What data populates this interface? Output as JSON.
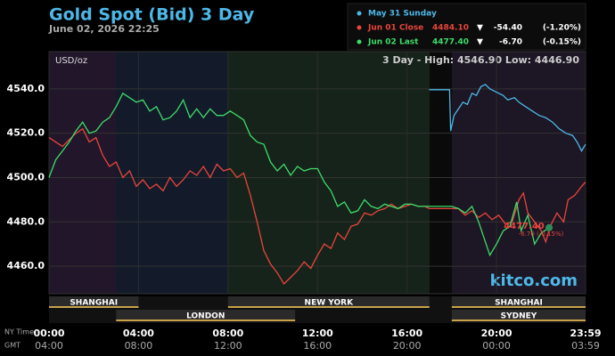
{
  "chart_data": {
    "type": "line",
    "title": "Gold Spot (Bid) 3 Day",
    "subtitle": "June 02, 2026 22:25",
    "unit_label": "USD/oz",
    "range_text": "3 Day - High: 4546.90  Low: 4446.90",
    "watermark": "kitco.com",
    "x_row_labels": [
      "NY Time",
      "GMT"
    ],
    "xlim": [
      0,
      23.98
    ],
    "ylim": [
      4447.6,
      4556.8
    ],
    "grid": true,
    "yticks": [
      {
        "value": 4460,
        "label": "4460.0"
      },
      {
        "value": 4480,
        "label": "4480.0"
      },
      {
        "value": 4500,
        "label": "4500.0"
      },
      {
        "value": 4520,
        "label": "4520.0"
      },
      {
        "value": 4540,
        "label": "4540.0"
      }
    ],
    "xticks": [
      {
        "value": 0,
        "label": "00:00"
      },
      {
        "value": 4,
        "label": "04:00"
      },
      {
        "value": 8,
        "label": "08:00"
      },
      {
        "value": 12,
        "label": "12:00"
      },
      {
        "value": 16,
        "label": "16:00"
      },
      {
        "value": 20,
        "label": "20:00"
      },
      {
        "value": 23.98,
        "label": "23:59"
      }
    ],
    "gmt_ticks": [
      {
        "value": 0,
        "label": "04:00"
      },
      {
        "value": 4,
        "label": "08:00"
      },
      {
        "value": 8,
        "label": "12:00"
      },
      {
        "value": 12,
        "label": "16:00"
      },
      {
        "value": 16,
        "label": "20:00"
      },
      {
        "value": 20,
        "label": "00:00"
      },
      {
        "value": 23.98,
        "label": "03:59"
      }
    ],
    "sessions": [
      {
        "name": "SHANGHAI",
        "start": 0,
        "end": 4,
        "row": 1
      },
      {
        "name": "LONDON",
        "start": 3,
        "end": 11,
        "row": 2
      },
      {
        "name": "NEW YORK",
        "start": 8,
        "end": 17,
        "row": 1
      },
      {
        "name": "SHANGHAI",
        "start": 18,
        "end": 23.98,
        "row": 1
      },
      {
        "name": "SYDNEY",
        "start": 18,
        "end": 23.98,
        "row": 2
      }
    ],
    "last_annotation": {
      "price": "4477.40",
      "change": "-6.70 (-0.15%)"
    },
    "series": [
      {
        "name": "May 31 Sunday",
        "color": "#4db8e8",
        "x": [
          16.99,
          17.9,
          17.95,
          18.1,
          18.3,
          18.5,
          18.7,
          18.9,
          19.1,
          19.3,
          19.5,
          19.7,
          19.9,
          20.1,
          20.3,
          20.5,
          20.8,
          21.0,
          21.3,
          21.6,
          21.9,
          22.2,
          22.5,
          22.8,
          23.1,
          23.4,
          23.6,
          23.8,
          23.98
        ],
        "values": [
          4539.6,
          4539.6,
          4521,
          4528,
          4531,
          4534,
          4533,
          4538,
          4537,
          4541,
          4542,
          4540,
          4539,
          4538,
          4537,
          4535,
          4536,
          4534,
          4532,
          4530,
          4528,
          4527,
          4525,
          4522,
          4520,
          4519,
          4516,
          4512,
          4515
        ]
      },
      {
        "name": "Jun 01 Close",
        "color": "#e8453c",
        "legend_value": {
          "value": 4484.1,
          "label": "4484.10"
        },
        "legend_arrow": "▼",
        "legend_change": {
          "value": -54.4,
          "label": "-54.40"
        },
        "legend_change_pct": "(-1.20%)",
        "x": [
          0,
          0.3,
          0.6,
          0.9,
          1.2,
          1.5,
          1.8,
          2.1,
          2.4,
          2.7,
          3.0,
          3.3,
          3.6,
          3.9,
          4.2,
          4.5,
          4.8,
          5.1,
          5.4,
          5.7,
          6.0,
          6.3,
          6.6,
          6.9,
          7.2,
          7.5,
          7.8,
          8.1,
          8.4,
          8.7,
          9.0,
          9.3,
          9.6,
          9.9,
          10.2,
          10.5,
          10.8,
          11.1,
          11.4,
          11.7,
          12.0,
          12.3,
          12.6,
          12.9,
          13.2,
          13.5,
          13.8,
          14.1,
          14.4,
          14.7,
          15.0,
          15.3,
          15.6,
          15.9,
          16.2,
          16.5,
          16.8,
          17.0,
          17.5,
          18.0,
          18.3,
          18.6,
          18.9,
          19.2,
          19.5,
          19.8,
          20.1,
          20.4,
          20.7,
          21.0,
          21.2,
          21.4,
          21.7,
          22.0,
          22.2,
          22.4,
          22.7,
          23.0,
          23.2,
          23.5,
          23.8,
          23.98
        ],
        "values": [
          4518,
          4516,
          4514,
          4517,
          4520,
          4522,
          4516,
          4518,
          4510,
          4505,
          4507,
          4500,
          4503,
          4496,
          4499,
          4495,
          4497,
          4494,
          4500,
          4496,
          4499,
          4503,
          4501,
          4505,
          4500,
          4506,
          4503,
          4504,
          4500,
          4502,
          4492,
          4480,
          4467,
          4461,
          4457,
          4452,
          4455,
          4458,
          4462,
          4459,
          4465,
          4470,
          4468,
          4475,
          4472,
          4478,
          4479,
          4484,
          4483,
          4485,
          4486,
          4488,
          4486,
          4487,
          4488,
          4487,
          4487,
          4486,
          4486,
          4486,
          4486,
          4483,
          4485,
          4482,
          4484,
          4481,
          4483,
          4479,
          4480,
          4490,
          4493,
          4484,
          4480,
          4476,
          4471,
          4478,
          4484,
          4480,
          4490,
          4492,
          4496,
          4498
        ]
      },
      {
        "name": "Jun 02 Last",
        "color": "#3ddc6a",
        "legend_value": {
          "value": 4477.4,
          "label": "4477.40"
        },
        "legend_arrow": "▼",
        "legend_change": {
          "value": -6.7,
          "label": "-6.70"
        },
        "legend_change_pct": "(-0.15%)",
        "x": [
          0,
          0.3,
          0.6,
          0.9,
          1.2,
          1.5,
          1.8,
          2.1,
          2.4,
          2.7,
          3.0,
          3.3,
          3.6,
          3.9,
          4.2,
          4.5,
          4.8,
          5.1,
          5.4,
          5.7,
          6.0,
          6.3,
          6.6,
          6.9,
          7.2,
          7.5,
          7.8,
          8.1,
          8.4,
          8.7,
          9.0,
          9.3,
          9.6,
          9.9,
          10.2,
          10.5,
          10.8,
          11.1,
          11.4,
          11.7,
          12.0,
          12.3,
          12.6,
          12.9,
          13.2,
          13.5,
          13.8,
          14.1,
          14.4,
          14.7,
          15.0,
          15.3,
          15.6,
          15.9,
          16.2,
          16.5,
          17.0,
          17.5,
          18.0,
          18.3,
          18.6,
          18.9,
          19.2,
          19.5,
          19.7,
          20.0,
          20.3,
          20.6,
          20.9,
          21.1,
          21.4,
          21.7,
          22.0,
          22.35
        ],
        "values": [
          4500,
          4508,
          4512,
          4516,
          4521,
          4525,
          4520,
          4521,
          4525,
          4527,
          4532,
          4538,
          4536,
          4534,
          4535,
          4530,
          4532,
          4526,
          4527,
          4530,
          4535,
          4527,
          4531,
          4527,
          4531,
          4528,
          4528,
          4530,
          4528,
          4526,
          4519,
          4516,
          4515,
          4507,
          4503,
          4506,
          4501,
          4505,
          4503,
          4504,
          4504,
          4498,
          4494,
          4487,
          4489,
          4484,
          4485,
          4490,
          4487,
          4486,
          4488,
          4487,
          4486,
          4488,
          4488,
          4487,
          4487,
          4487,
          4487,
          4486,
          4484,
          4487,
          4480,
          4471,
          4465,
          4470,
          4476,
          4478,
          4489,
          4476,
          4483,
          4470,
          4475,
          4477.4
        ]
      }
    ]
  }
}
